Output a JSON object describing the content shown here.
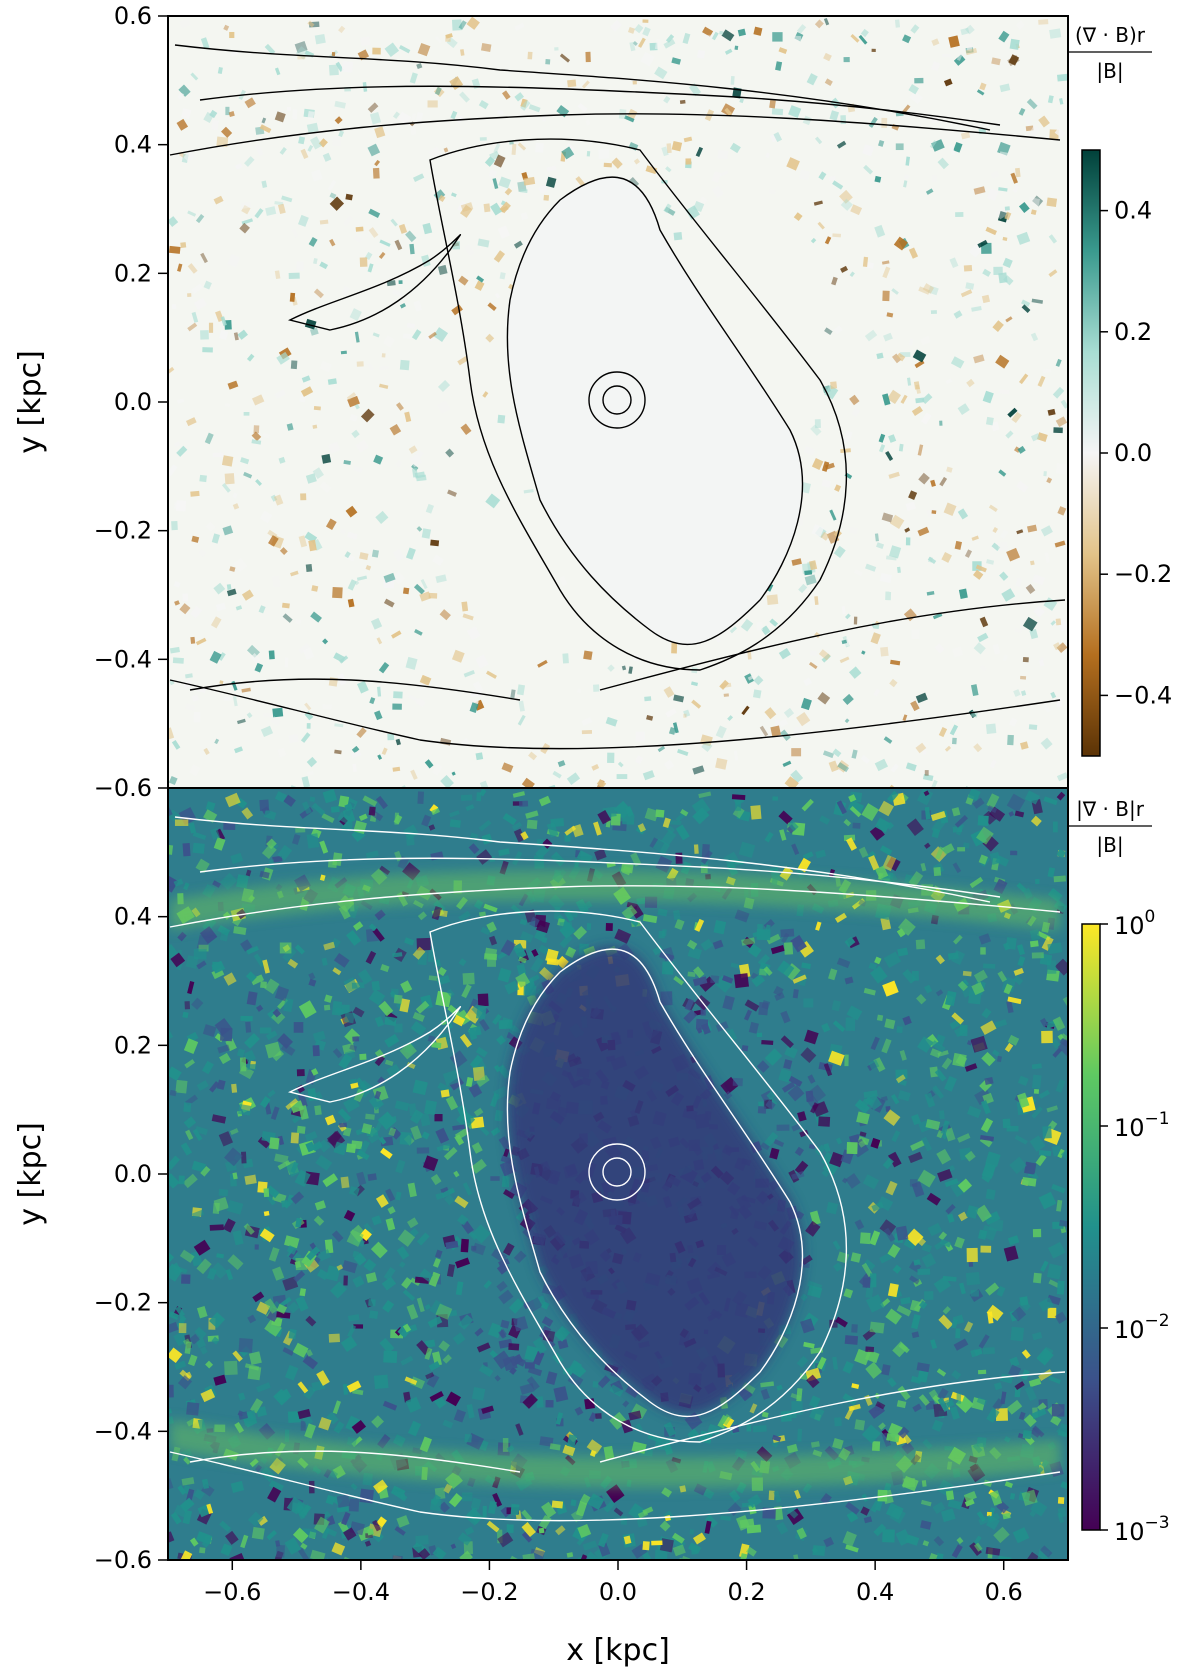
{
  "chart_data": [
    {
      "type": "heatmap",
      "panel": "top",
      "ylabel": "y [kpc]",
      "xlim": [
        -0.7,
        0.7
      ],
      "ylim": [
        -0.6,
        0.6
      ],
      "y_ticks": [
        0.6,
        0.4,
        0.2,
        0.0,
        -0.2,
        -0.4,
        -0.6
      ],
      "y_tick_labels": [
        "0.6",
        "0.4",
        "0.2",
        "0.0",
        "−0.2",
        "−0.4",
        "−0.6"
      ],
      "colorbar": {
        "label_numerator": "(∇ · B)r",
        "label_denominator": "|B|",
        "scale": "linear",
        "range": [
          -0.5,
          0.5
        ],
        "ticks": [
          0.4,
          0.2,
          0.0,
          -0.2,
          -0.4
        ],
        "tick_labels": [
          "0.4",
          "0.2",
          "0.0",
          "−0.2",
          "−0.4"
        ],
        "colormap": [
          "#5b3306",
          "#b46f1f",
          "#e2c389",
          "#f5f5f5",
          "#a8ddd3",
          "#3a9a8e",
          "#01413a"
        ]
      },
      "contour_color": "#000000"
    },
    {
      "type": "heatmap",
      "panel": "bottom",
      "xlabel": "x [kpc]",
      "ylabel": "y [kpc]",
      "xlim": [
        -0.7,
        0.7
      ],
      "ylim": [
        -0.6,
        0.6
      ],
      "x_ticks": [
        -0.6,
        -0.4,
        -0.2,
        0.0,
        0.2,
        0.4,
        0.6
      ],
      "x_tick_labels": [
        "−0.6",
        "−0.4",
        "−0.2",
        "0.0",
        "0.2",
        "0.4",
        "0.6"
      ],
      "y_ticks": [
        0.4,
        0.2,
        0.0,
        -0.2,
        -0.4,
        -0.6
      ],
      "y_tick_labels": [
        "0.4",
        "0.2",
        "0.0",
        "−0.2",
        "−0.4",
        "−0.6"
      ],
      "colorbar": {
        "label_numerator": "|∇ · B|r",
        "label_denominator": "|B|",
        "scale": "log",
        "range": [
          0.001,
          1
        ],
        "ticks": [
          1,
          0.1,
          0.01,
          0.001
        ],
        "tick_base": "10",
        "tick_exponents": [
          "0",
          "−1",
          "−2",
          "−3"
        ],
        "colormap": [
          "#440154",
          "#3b528b",
          "#21918c",
          "#5ec962",
          "#fde725"
        ]
      },
      "contour_color": "#ffffff"
    }
  ]
}
